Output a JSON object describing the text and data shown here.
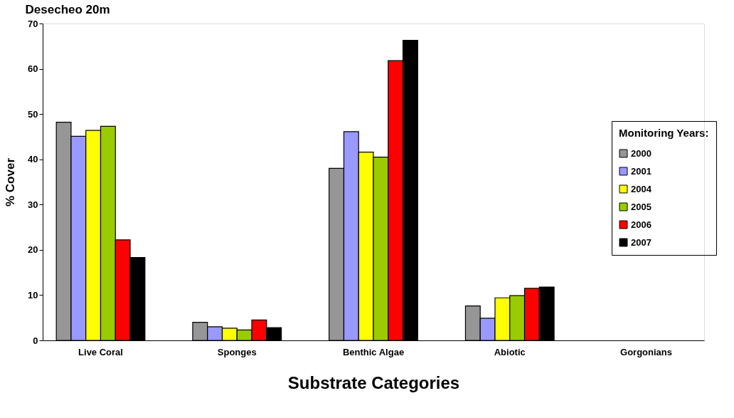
{
  "chart_data": {
    "type": "bar",
    "title": "Desecheo 20m",
    "xlabel": "Substrate Categories",
    "ylabel": "% Cover",
    "legend_title": "Monitoring Years:",
    "categories": [
      "Live Coral",
      "Sponges",
      "Benthic Algae",
      "Abiotic",
      "Gorgonians"
    ],
    "series": [
      {
        "name": "2000",
        "color": "#969696",
        "values": [
          48.2,
          4.0,
          38.0,
          7.6,
          null
        ]
      },
      {
        "name": "2001",
        "color": "#9999ff",
        "values": [
          45.1,
          3.0,
          46.1,
          4.9,
          null
        ]
      },
      {
        "name": "2004",
        "color": "#ffff00",
        "values": [
          46.4,
          2.7,
          41.6,
          9.4,
          null
        ]
      },
      {
        "name": "2005",
        "color": "#99cc00",
        "values": [
          47.3,
          2.3,
          40.5,
          9.9,
          null
        ]
      },
      {
        "name": "2006",
        "color": "#ff0000",
        "values": [
          22.2,
          4.5,
          61.8,
          11.5,
          null
        ]
      },
      {
        "name": "2007",
        "color": "#000000",
        "values": [
          18.3,
          2.8,
          66.3,
          11.8,
          null
        ]
      }
    ],
    "ylim": [
      0,
      70
    ],
    "yticks": [
      0,
      10,
      20,
      30,
      40,
      50,
      60,
      70
    ],
    "grid": false,
    "legend": "right"
  }
}
